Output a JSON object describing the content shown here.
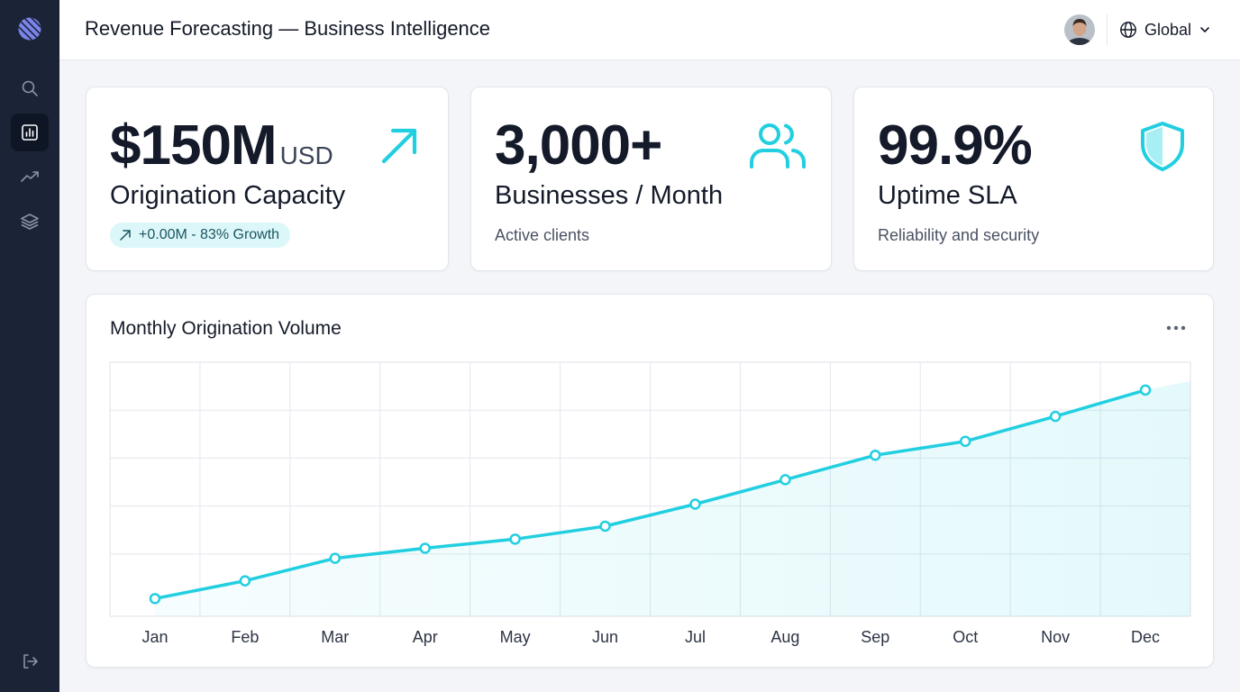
{
  "header": {
    "title": "Revenue Forecasting — Business Intelligence",
    "region": "Global"
  },
  "sidebar": {
    "items": [
      {
        "name": "search",
        "icon": "search-icon",
        "active": false
      },
      {
        "name": "dashboard",
        "icon": "bar-chart-icon",
        "active": true
      },
      {
        "name": "trends",
        "icon": "trending-up-icon",
        "active": false
      },
      {
        "name": "layers",
        "icon": "layers-icon",
        "active": false
      }
    ],
    "logout_icon": "logout-icon"
  },
  "stats": [
    {
      "value": "$150M",
      "unit": "USD",
      "label": "Origination Capacity",
      "badge": "+0.00M - 83% Growth",
      "icon": "arrow-up-right-icon"
    },
    {
      "value": "3,000+",
      "label": "Businesses / Month",
      "sub": "Active clients",
      "icon": "users-icon"
    },
    {
      "value": "99.9%",
      "label": "Uptime SLA",
      "sub": "Reliability and security",
      "icon": "shield-icon"
    }
  ],
  "colors": {
    "accent": "#22cfe0",
    "sidebar_bg": "#1b2436",
    "badge_bg": "#dcf7f9",
    "text": "#141a29"
  },
  "chart": {
    "title": "Monthly Origination Volume",
    "more_icon": "more-horizontal-icon"
  },
  "chart_data": {
    "type": "area",
    "categories": [
      "Jan",
      "Feb",
      "Mar",
      "Apr",
      "May",
      "Jun",
      "Jul",
      "Aug",
      "Sep",
      "Oct",
      "Nov",
      "Dec"
    ],
    "series": [
      {
        "values": [
          3.7,
          7.4,
          12.1,
          14.2,
          16.1,
          18.8,
          23.4,
          28.5,
          33.6,
          36.5,
          41.7,
          47.2
        ]
      }
    ],
    "ylim": [
      0,
      53
    ],
    "grid": true,
    "legend": "none"
  }
}
